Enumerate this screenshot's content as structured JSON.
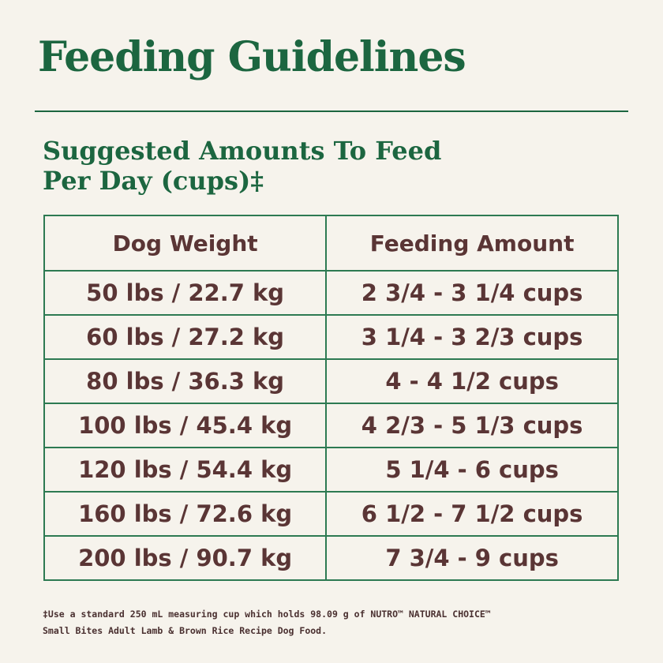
{
  "header": {
    "title": "Feeding Guidelines",
    "subtitle_line1": "Suggested Amounts To Feed",
    "subtitle_line2": "Per Day (cups)‡"
  },
  "table": {
    "headers": [
      "Dog Weight",
      "Feeding Amount"
    ],
    "rows": [
      [
        "50 lbs / 22.7 kg",
        "2 3/4 - 3 1/4 cups"
      ],
      [
        "60 lbs / 27.2 kg",
        "3 1/4 - 3 2/3 cups"
      ],
      [
        "80 lbs / 36.3 kg",
        "4 - 4 1/2 cups"
      ],
      [
        "100 lbs / 45.4 kg",
        "4 2/3 - 5 1/3 cups"
      ],
      [
        "120 lbs / 54.4 kg",
        "5 1/4 - 6 cups"
      ],
      [
        "160 lbs / 72.6 kg",
        "6 1/2 - 7 1/2 cups"
      ],
      [
        "200 lbs / 90.7 kg",
        "7 3/4 - 9 cups"
      ]
    ]
  },
  "footnote": {
    "line1": "‡Use a standard 250 mL measuring cup which holds 98.09 g of NUTRO™ NATURAL CHOICE™",
    "line2": "Small Bites Adult Lamb & Brown Rice Recipe Dog Food."
  }
}
